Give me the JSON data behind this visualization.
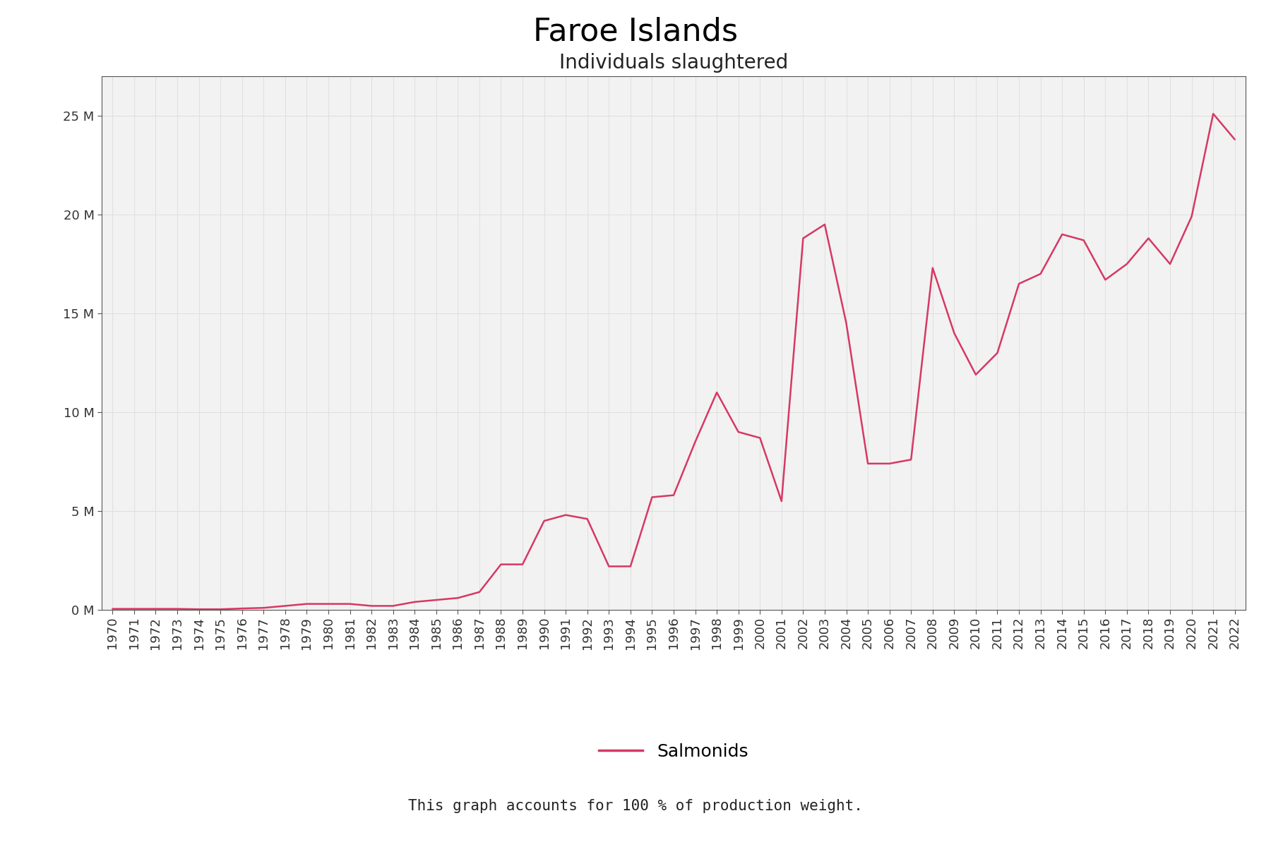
{
  "title": "Faroe Islands",
  "subtitle": "Individuals slaughtered",
  "legend_label": "Salmonids",
  "footnote": "This graph accounts for 100 % of production weight.",
  "line_color": "#d63864",
  "background_color": "#ffffff",
  "plot_background_color": "#f2f2f2",
  "grid_color": "#e0e0e0",
  "spine_color": "#555555",
  "years": [
    1970,
    1971,
    1972,
    1973,
    1974,
    1975,
    1976,
    1977,
    1978,
    1979,
    1980,
    1981,
    1982,
    1983,
    1984,
    1985,
    1986,
    1987,
    1988,
    1989,
    1990,
    1991,
    1992,
    1993,
    1994,
    1995,
    1996,
    1997,
    1998,
    1999,
    2000,
    2001,
    2002,
    2003,
    2004,
    2005,
    2006,
    2007,
    2008,
    2009,
    2010,
    2011,
    2012,
    2013,
    2014,
    2015,
    2016,
    2017,
    2018,
    2019,
    2020,
    2021,
    2022
  ],
  "values": [
    50000,
    50000,
    50000,
    50000,
    30000,
    30000,
    70000,
    100000,
    200000,
    300000,
    300000,
    300000,
    200000,
    200000,
    400000,
    500000,
    600000,
    900000,
    2300000,
    2300000,
    4500000,
    4800000,
    4600000,
    2200000,
    2200000,
    5700000,
    5800000,
    8500000,
    11000000,
    9000000,
    8700000,
    5500000,
    18800000,
    19500000,
    14500000,
    7400000,
    7400000,
    7600000,
    17300000,
    14000000,
    11900000,
    13000000,
    16500000,
    17000000,
    19000000,
    18700000,
    16700000,
    17500000,
    18800000,
    17500000,
    19900000,
    25100000,
    23800000
  ],
  "ylim": [
    0,
    27000000
  ],
  "ytick_values": [
    0,
    5000000,
    10000000,
    15000000,
    20000000,
    25000000
  ],
  "ytick_labels": [
    "0 M",
    "5 M",
    "10 M",
    "15 M",
    "20 M",
    "25 M"
  ],
  "title_fontsize": 32,
  "subtitle_fontsize": 20,
  "tick_fontsize": 13,
  "legend_fontsize": 18,
  "footnote_fontsize": 15
}
